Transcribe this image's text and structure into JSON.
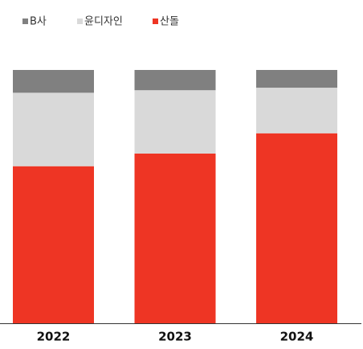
{
  "chart_data": {
    "type": "stacked_bar",
    "categories": [
      "2022",
      "2023",
      "2024"
    ],
    "series": [
      {
        "name": "B사",
        "color": "#808080",
        "values": [
          9,
          8,
          7
        ]
      },
      {
        "name": "윤디자인",
        "color": "#d9d9d9",
        "values": [
          29,
          25,
          18
        ]
      },
      {
        "name": "산돌",
        "color": "#ee3524",
        "values": [
          62,
          67,
          75
        ]
      }
    ],
    "ylim": [
      0,
      100
    ]
  }
}
